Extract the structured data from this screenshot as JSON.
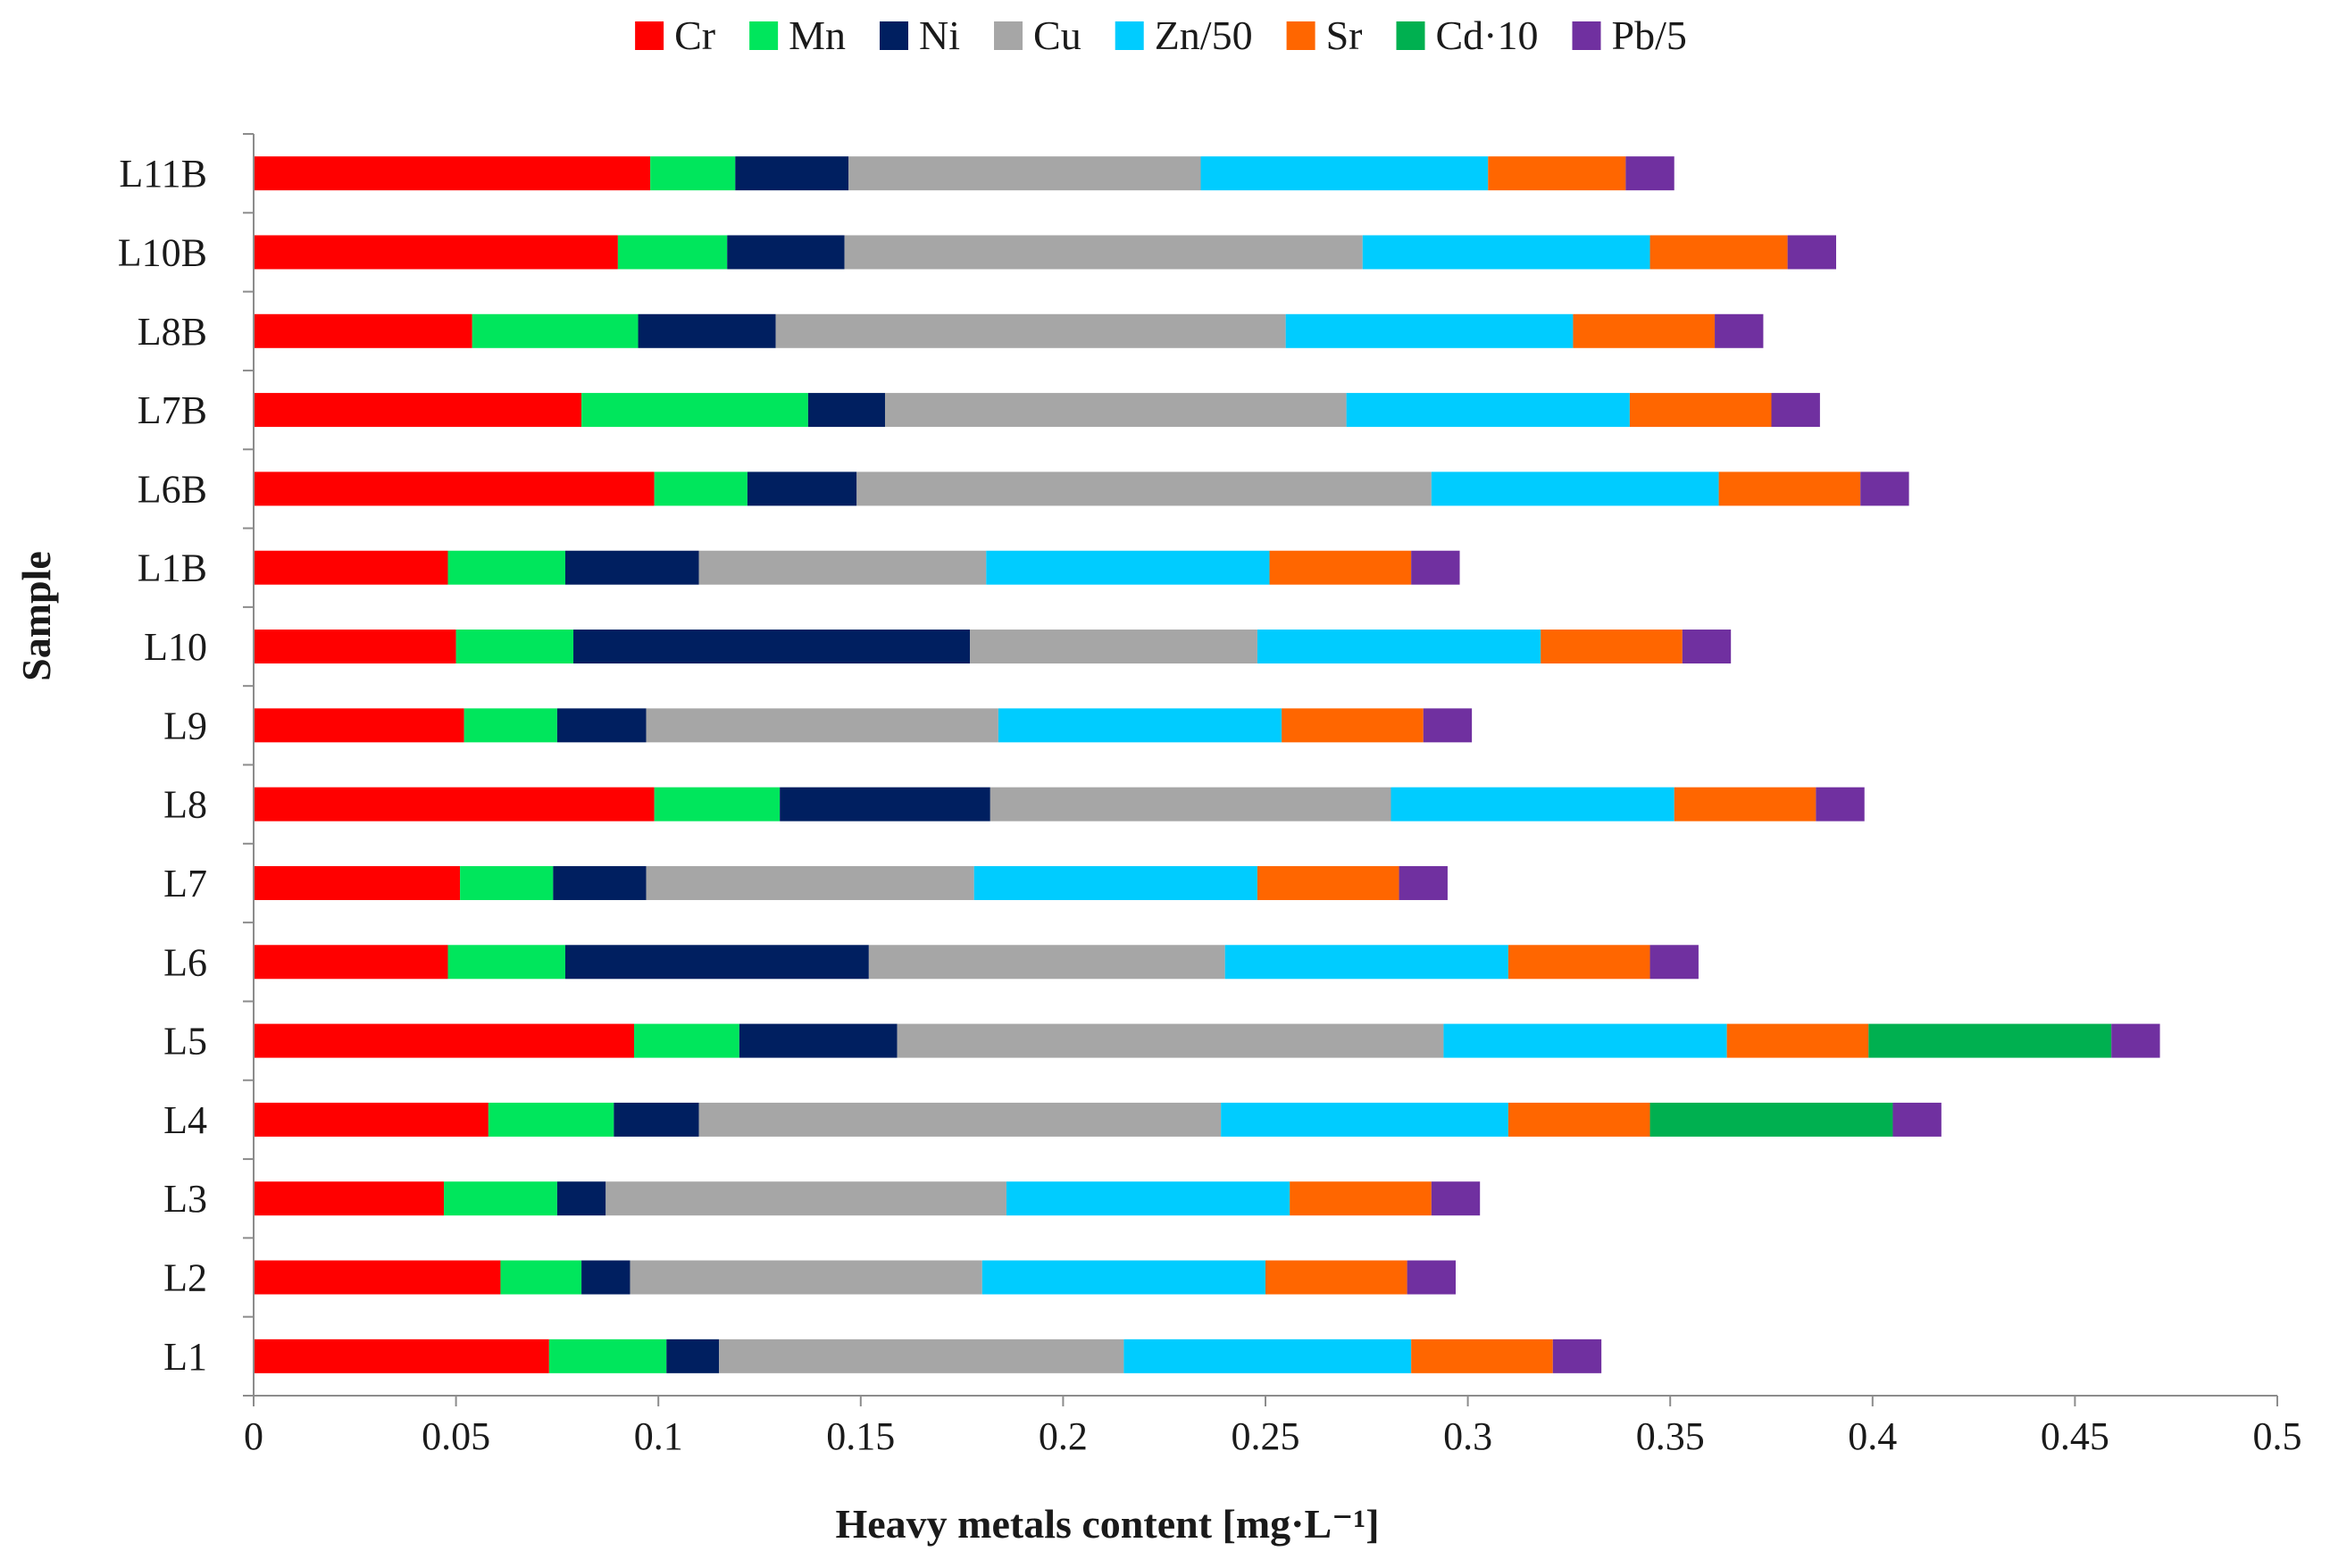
{
  "chart_data": {
    "type": "bar",
    "orientation": "horizontal",
    "stacked": true,
    "title": "",
    "xlabel": "Heavy metals content [mg·L⁻¹]",
    "ylabel": "Sample",
    "xlim": [
      0,
      0.5
    ],
    "xticks": [
      0,
      0.05,
      0.1,
      0.15,
      0.2,
      0.25,
      0.3,
      0.35,
      0.4,
      0.45,
      0.5
    ],
    "xtick_labels": [
      "0",
      "0.05",
      "0.1",
      "0.15",
      "0.2",
      "0.25",
      "0.3",
      "0.35",
      "0.4",
      "0.45",
      "0.5"
    ],
    "grid": false,
    "legend_position": "top",
    "categories": [
      "L1",
      "L2",
      "L3",
      "L4",
      "L5",
      "L6",
      "L7",
      "L8",
      "L9",
      "L10",
      "L1B",
      "L6B",
      "L7B",
      "L8B",
      "L10B",
      "L11B"
    ],
    "series": [
      {
        "name": "Cr",
        "color": "#ff0000",
        "values": [
          0.073,
          0.061,
          0.047,
          0.058,
          0.094,
          0.048,
          0.051,
          0.099,
          0.052,
          0.05,
          0.048,
          0.099,
          0.081,
          0.054,
          0.09,
          0.098
        ]
      },
      {
        "name": "Mn",
        "color": "#00e65c",
        "values": [
          0.029,
          0.02,
          0.028,
          0.031,
          0.026,
          0.029,
          0.023,
          0.031,
          0.023,
          0.029,
          0.029,
          0.023,
          0.056,
          0.041,
          0.027,
          0.021
        ]
      },
      {
        "name": "Ni",
        "color": "#001f60",
        "values": [
          0.013,
          0.012,
          0.012,
          0.021,
          0.039,
          0.075,
          0.023,
          0.052,
          0.022,
          0.098,
          0.033,
          0.027,
          0.019,
          0.034,
          0.029,
          0.028
        ]
      },
      {
        "name": "Cu",
        "color": "#a6a6a6",
        "values": [
          0.1,
          0.087,
          0.099,
          0.129,
          0.135,
          0.088,
          0.081,
          0.099,
          0.087,
          0.071,
          0.071,
          0.142,
          0.114,
          0.126,
          0.128,
          0.087
        ]
      },
      {
        "name": "Zn/50",
        "color": "#00ccff",
        "values": [
          0.071,
          0.07,
          0.07,
          0.071,
          0.07,
          0.07,
          0.07,
          0.07,
          0.07,
          0.07,
          0.07,
          0.071,
          0.07,
          0.071,
          0.071,
          0.071
        ]
      },
      {
        "name": "Sr",
        "color": "#ff6600",
        "values": [
          0.035,
          0.035,
          0.035,
          0.035,
          0.035,
          0.035,
          0.035,
          0.035,
          0.035,
          0.035,
          0.035,
          0.035,
          0.035,
          0.035,
          0.034,
          0.034
        ]
      },
      {
        "name": "Cd·10",
        "color": "#00b050",
        "values": [
          0,
          0,
          0,
          0.06,
          0.06,
          0,
          0,
          0,
          0,
          0,
          0,
          0,
          0,
          0,
          0,
          0
        ]
      },
      {
        "name": "Pb/5",
        "color": "#7030a0",
        "values": [
          0.012,
          0.012,
          0.012,
          0.012,
          0.012,
          0.012,
          0.012,
          0.012,
          0.012,
          0.012,
          0.012,
          0.012,
          0.012,
          0.012,
          0.012,
          0.012
        ]
      }
    ]
  }
}
